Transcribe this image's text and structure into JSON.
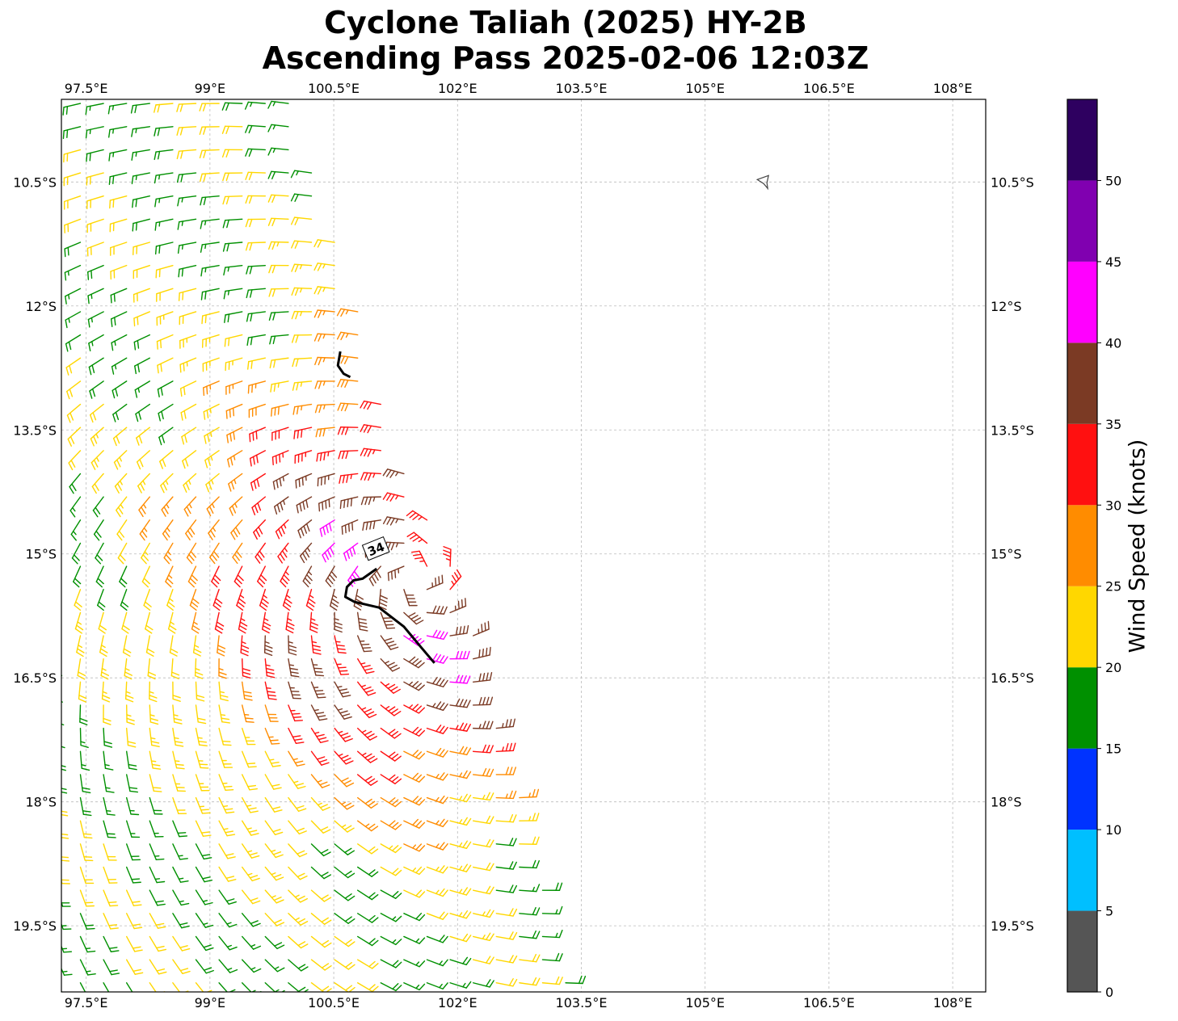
{
  "title": {
    "line1": "Cyclone Taliah (2025) HY-2B",
    "line2": "Ascending Pass 2025-02-06 12:03Z"
  },
  "map": {
    "lon_range": [
      97.2,
      108.4
    ],
    "lat_range": [
      -20.3,
      -9.5
    ],
    "lon_ticks": [
      {
        "value": 97.5,
        "label": "97.5°E"
      },
      {
        "value": 99,
        "label": "99°E"
      },
      {
        "value": 100.5,
        "label": "100.5°E"
      },
      {
        "value": 102,
        "label": "102°E"
      },
      {
        "value": 103.5,
        "label": "103.5°E"
      },
      {
        "value": 105,
        "label": "105°E"
      },
      {
        "value": 106.5,
        "label": "106.5°E"
      },
      {
        "value": 108,
        "label": "108°E"
      }
    ],
    "lat_ticks": [
      {
        "value": -10.5,
        "label": "10.5°S"
      },
      {
        "value": -12,
        "label": "12°S"
      },
      {
        "value": -13.5,
        "label": "13.5°S"
      },
      {
        "value": -15,
        "label": "15°S"
      },
      {
        "value": -16.5,
        "label": "16.5°S"
      },
      {
        "value": -18,
        "label": "18°S"
      },
      {
        "value": -19.5,
        "label": "19.5°S"
      }
    ],
    "gridlines": true,
    "swath_east_edge": [
      [
        -9.5,
        100.0
      ],
      [
        -12.0,
        100.8
      ],
      [
        -13.5,
        101.2
      ],
      [
        -14.5,
        101.6
      ],
      [
        -15.5,
        102.1
      ],
      [
        -17.0,
        102.5
      ],
      [
        -18.5,
        102.9
      ],
      [
        -20.3,
        103.4
      ]
    ],
    "storm_center": {
      "lon": 101.5,
      "lat": -15.3
    },
    "contour_34kt": {
      "label": "34",
      "segments": [
        [
          [
            100.58,
            -12.55
          ],
          [
            100.55,
            -12.72
          ],
          [
            100.62,
            -12.82
          ],
          [
            100.7,
            -12.86
          ]
        ],
        [
          [
            101.02,
            -15.18
          ],
          [
            100.85,
            -15.3
          ],
          [
            100.74,
            -15.32
          ],
          [
            100.66,
            -15.4
          ],
          [
            100.64,
            -15.52
          ],
          [
            100.75,
            -15.58
          ],
          [
            101.05,
            -15.65
          ],
          [
            101.35,
            -15.88
          ],
          [
            101.55,
            -16.12
          ],
          [
            101.72,
            -16.32
          ]
        ]
      ]
    },
    "island_marker": {
      "lon": 105.7,
      "lat": -10.5
    },
    "barbs": {
      "grid_spacing_deg": 0.28,
      "direction": "cyclonic (clockwise, Southern Hemisphere)",
      "max_speed_kt": 38,
      "ambient_speed_kt": 19
    }
  },
  "colorbar": {
    "label": "Wind Speed (knots)",
    "bins": [
      {
        "min": 0,
        "max": 5,
        "color": "#555555"
      },
      {
        "min": 5,
        "max": 10,
        "color": "#00bfff"
      },
      {
        "min": 10,
        "max": 15,
        "color": "#0033ff"
      },
      {
        "min": 15,
        "max": 20,
        "color": "#009000"
      },
      {
        "min": 20,
        "max": 25,
        "color": "#ffd700"
      },
      {
        "min": 25,
        "max": 30,
        "color": "#ff8c00"
      },
      {
        "min": 30,
        "max": 35,
        "color": "#ff1010"
      },
      {
        "min": 35,
        "max": 40,
        "color": "#7b3a24"
      },
      {
        "min": 40,
        "max": 45,
        "color": "#ff00ff"
      },
      {
        "min": 45,
        "max": 50,
        "color": "#8000b0"
      },
      {
        "min": 50,
        "max": 55,
        "color": "#2e0060"
      }
    ],
    "tick_labels": [
      "0",
      "5",
      "10",
      "15",
      "20",
      "25",
      "30",
      "35",
      "40",
      "45",
      "50"
    ]
  }
}
